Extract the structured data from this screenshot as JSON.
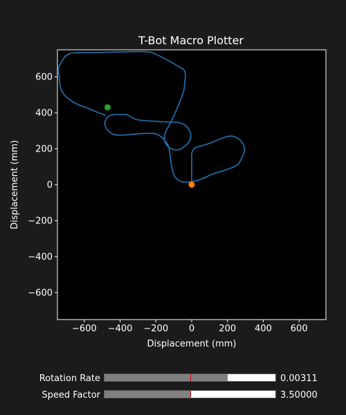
{
  "chart_data": {
    "type": "line",
    "title": "T-Bot Macro Plotter",
    "xlabel": "Displacement (mm)",
    "ylabel": "Displacement (mm)",
    "xlim": [
      -750,
      750
    ],
    "ylim": [
      -750,
      750
    ],
    "xticks": [
      -600,
      -400,
      -200,
      0,
      200,
      400,
      600
    ],
    "yticks": [
      -600,
      -400,
      -200,
      0,
      200,
      400,
      600
    ],
    "xtick_labels": [
      "−600",
      "−400",
      "−200",
      "0",
      "200",
      "400",
      "600"
    ],
    "ytick_labels": [
      "−600",
      "−400",
      "−200",
      "0",
      "200",
      "400",
      "600"
    ],
    "grid": false,
    "series": [
      {
        "color": "#1f77b4",
        "points": [
          [
            0,
            0
          ],
          [
            0,
            15
          ],
          [
            0,
            40
          ],
          [
            0,
            90
          ],
          [
            0,
            140
          ],
          [
            0,
            170
          ],
          [
            5,
            188
          ],
          [
            20,
            205
          ],
          [
            40,
            212
          ],
          [
            100,
            230
          ],
          [
            160,
            255
          ],
          [
            210,
            270
          ],
          [
            250,
            262
          ],
          [
            285,
            230
          ],
          [
            295,
            190
          ],
          [
            280,
            150
          ],
          [
            255,
            110
          ],
          [
            200,
            85
          ],
          [
            120,
            60
          ],
          [
            50,
            30
          ],
          [
            -10,
            15
          ],
          [
            -50,
            15
          ],
          [
            -75,
            25
          ],
          [
            -90,
            40
          ],
          [
            -105,
            70
          ],
          [
            -115,
            120
          ],
          [
            -120,
            160
          ],
          [
            -125,
            190
          ],
          [
            -130,
            215
          ],
          [
            -150,
            245
          ],
          [
            -175,
            270
          ],
          [
            -210,
            285
          ],
          [
            -270,
            285
          ],
          [
            -330,
            280
          ],
          [
            -400,
            275
          ],
          [
            -430,
            278
          ],
          [
            -455,
            290
          ],
          [
            -475,
            310
          ],
          [
            -485,
            340
          ],
          [
            -475,
            370
          ],
          [
            -455,
            385
          ],
          [
            -430,
            390
          ],
          [
            -400,
            390
          ],
          [
            -360,
            388
          ],
          [
            -300,
            360
          ],
          [
            -160,
            350
          ],
          [
            -70,
            345
          ],
          [
            -30,
            325
          ],
          [
            -10,
            295
          ],
          [
            -5,
            270
          ],
          [
            -15,
            238
          ],
          [
            -40,
            213
          ],
          [
            -70,
            195
          ],
          [
            -100,
            195
          ],
          [
            -130,
            210
          ],
          [
            -150,
            240
          ],
          [
            -152,
            270
          ],
          [
            -140,
            305
          ],
          [
            -110,
            360
          ],
          [
            -75,
            440
          ],
          [
            -45,
            520
          ],
          [
            -40,
            560
          ],
          [
            -35,
            615
          ],
          [
            -45,
            640
          ],
          [
            -70,
            655
          ],
          [
            -130,
            690
          ],
          [
            -210,
            730
          ],
          [
            -240,
            738
          ],
          [
            -300,
            740
          ],
          [
            -400,
            738
          ],
          [
            -550,
            735
          ],
          [
            -650,
            733
          ],
          [
            -690,
            725
          ],
          [
            -720,
            695
          ],
          [
            -745,
            645
          ],
          [
            -740,
            600
          ],
          [
            -735,
            550
          ],
          [
            -720,
            510
          ],
          [
            -685,
            475
          ],
          [
            -640,
            448
          ],
          [
            -580,
            425
          ],
          [
            -520,
            400
          ],
          [
            -480,
            385
          ]
        ]
      }
    ],
    "markers": [
      {
        "x": -470,
        "y": 430,
        "color": "#2ca02c"
      },
      {
        "x": 0,
        "y": 0,
        "color": "#ff7f0e"
      }
    ]
  },
  "sliders": [
    {
      "label": "Rotation Rate",
      "value_text": "0.00311",
      "fraction": 0.72,
      "init_fraction": 0.5
    },
    {
      "label": "Speed Factor",
      "value_text": "3.50000",
      "fraction": 0.5,
      "init_fraction": 0.5
    }
  ]
}
